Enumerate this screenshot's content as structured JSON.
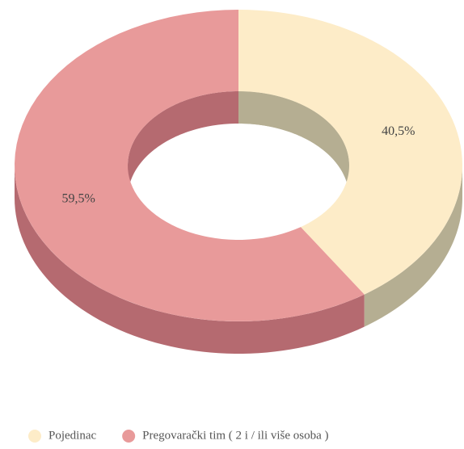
{
  "chart_data": {
    "type": "donut3d",
    "categories": [
      "Pojedinac",
      "Pregovarački tim ( 2 i / ili više osoba )"
    ],
    "values": [
      40.5,
      59.5
    ],
    "value_labels": [
      "40,5%",
      "59,5%"
    ],
    "colors": [
      "#fdecc8",
      "#e89a9a"
    ],
    "side_colors": [
      "#b5ae92",
      "#b56a70"
    ],
    "legend": "bottom"
  }
}
